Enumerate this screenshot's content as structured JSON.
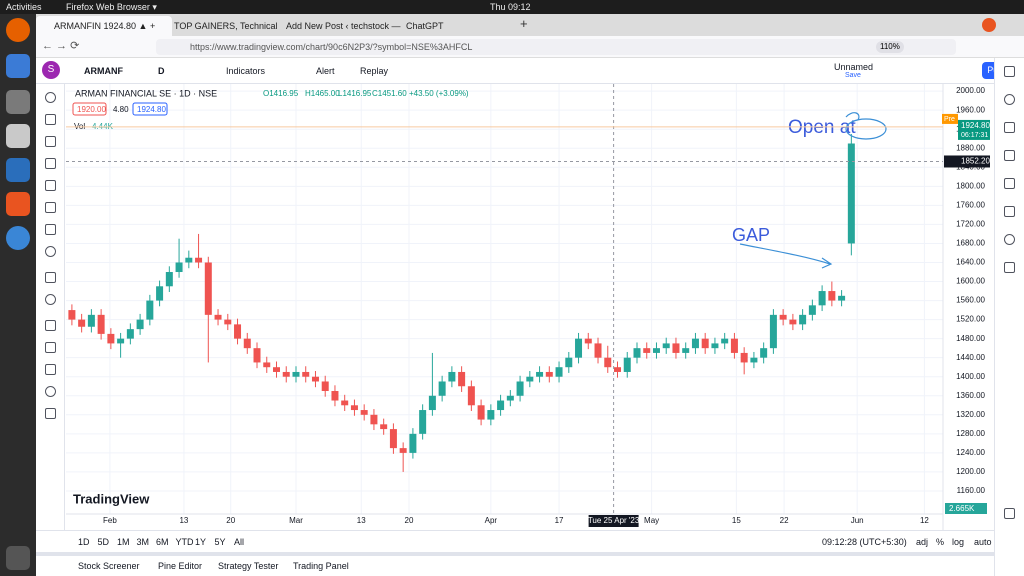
{
  "desktop": {
    "activities": "Activities",
    "app_menu": "Firefox Web Browser ▾",
    "clock": "Thu 09:12"
  },
  "browser": {
    "tabs": [
      "ARMANFIN 1924.80 ▲ +",
      "TOP GAINERS, Technical",
      "Add New Post ‹ techstock —",
      "ChatGPT"
    ],
    "url": "https://www.tradingview.com/chart/90c6N2P3/?symbol=NSE%3AHFCL",
    "zoom": "110%"
  },
  "toolbar": {
    "avatar": "S",
    "symbol": "ARMANF",
    "interval": "D",
    "indicators": "Indicators",
    "alert": "Alert",
    "replay": "Replay",
    "layout_name": "Unnamed",
    "save": "Save",
    "publish": "Publish"
  },
  "legend": {
    "title": "ARMAN FINANCIAL SE · 1D · NSE",
    "open": "O1416.95",
    "high": "H1465.00",
    "low": "L1416.95",
    "close": "C1451.60",
    "change": "+43.50 (+3.09%)",
    "bid": "1920.00",
    "spread": "4.80",
    "ask": "1924.80",
    "vol_label": "Vol",
    "vol_value": "4.44K"
  },
  "price_labels": {
    "pre_tag": "Pre",
    "pre_price": {
      "value": 1924.8,
      "label": "1924.80"
    },
    "countdown": "06:17:31",
    "crosshair_price": {
      "value": 1852.2,
      "label": "1852.20"
    },
    "crosshair_date": "Tue 25 Apr '23",
    "volume_axis": "2.665K",
    "logo": "TradingView"
  },
  "annotations": {
    "open_at": "Open at",
    "gap": "GAP"
  },
  "chart_data": {
    "type": "candlestick",
    "colors": {
      "up": "#26a69a",
      "down": "#ef5350"
    },
    "xlim": [
      -0.4,
      89.1
    ],
    "ylim": [
      1120,
      2015
    ],
    "xticks": [
      {
        "value": 3.9,
        "label": "Feb"
      },
      {
        "value": 11.5,
        "label": "13"
      },
      {
        "value": 16.3,
        "label": "20"
      },
      {
        "value": 23,
        "label": "Mar"
      },
      {
        "value": 29.7,
        "label": "13"
      },
      {
        "value": 34.6,
        "label": "20"
      },
      {
        "value": 43,
        "label": "Apr"
      },
      {
        "value": 50,
        "label": "17"
      },
      {
        "value": 59.5,
        "label": "May"
      },
      {
        "value": 68.2,
        "label": "15"
      },
      {
        "value": 73.1,
        "label": "22"
      },
      {
        "value": 80.6,
        "label": "Jun"
      },
      {
        "value": 87.5,
        "label": "12"
      }
    ],
    "crosshair_x": 55.6,
    "yticks": [
      {
        "value": 1160,
        "label": "1160.00"
      },
      {
        "value": 1200,
        "label": "1200.00"
      },
      {
        "value": 1240,
        "label": "1240.00"
      },
      {
        "value": 1280,
        "label": "1280.00"
      },
      {
        "value": 1320,
        "label": "1320.00"
      },
      {
        "value": 1360,
        "label": "1360.00"
      },
      {
        "value": 1400,
        "label": "1400.00"
      },
      {
        "value": 1440,
        "label": "1440.00"
      },
      {
        "value": 1480,
        "label": "1480.00"
      },
      {
        "value": 1520,
        "label": "1520.00"
      },
      {
        "value": 1560,
        "label": "1560.00"
      },
      {
        "value": 1600,
        "label": "1600.00"
      },
      {
        "value": 1640,
        "label": "1640.00"
      },
      {
        "value": 1680,
        "label": "1680.00"
      },
      {
        "value": 1720,
        "label": "1720.00"
      },
      {
        "value": 1760,
        "label": "1760.00"
      },
      {
        "value": 1800,
        "label": "1800.00"
      },
      {
        "value": 1840,
        "label": "1840.00"
      },
      {
        "value": 1880,
        "label": "1880.00"
      },
      {
        "value": 1920,
        "label": "1920.00"
      },
      {
        "value": 1960,
        "label": "1960.00"
      },
      {
        "value": 2000,
        "label": "2000.00"
      }
    ],
    "grid": true,
    "open": [
      1540,
      1520,
      1505,
      1530,
      1490,
      1470,
      1480,
      1500,
      1520,
      1560,
      1590,
      1620,
      1640,
      1650,
      1640,
      1530,
      1520,
      1510,
      1480,
      1460,
      1430,
      1420,
      1410,
      1400,
      1410,
      1400,
      1390,
      1370,
      1350,
      1340,
      1330,
      1320,
      1300,
      1290,
      1250,
      1240,
      1280,
      1330,
      1360,
      1390,
      1410,
      1380,
      1340,
      1310,
      1330,
      1350,
      1360,
      1390,
      1400,
      1410,
      1400,
      1420,
      1440,
      1480,
      1470,
      1440,
      1420,
      1410,
      1440,
      1460,
      1450,
      1460,
      1470,
      1450,
      1460,
      1480,
      1460,
      1470,
      1480,
      1450,
      1430,
      1440,
      1460,
      1530,
      1520,
      1510,
      1530,
      1550,
      1580,
      1560,
      1680
    ],
    "high": [
      1552,
      1532,
      1542,
      1542,
      1502,
      1492,
      1512,
      1532,
      1572,
      1602,
      1632,
      1690,
      1665,
      1700,
      1652,
      1542,
      1532,
      1522,
      1492,
      1472,
      1442,
      1432,
      1422,
      1422,
      1422,
      1412,
      1402,
      1382,
      1362,
      1352,
      1342,
      1332,
      1312,
      1302,
      1262,
      1292,
      1342,
      1450,
      1402,
      1422,
      1422,
      1392,
      1352,
      1342,
      1362,
      1372,
      1402,
      1412,
      1422,
      1422,
      1432,
      1452,
      1492,
      1492,
      1482,
      1465,
      1432,
      1452,
      1472,
      1472,
      1472,
      1482,
      1482,
      1472,
      1492,
      1492,
      1482,
      1492,
      1492,
      1462,
      1452,
      1472,
      1542,
      1542,
      1532,
      1542,
      1562,
      1592,
      1600,
      1582,
      1910
    ],
    "low": [
      1508,
      1493,
      1493,
      1478,
      1458,
      1440,
      1468,
      1488,
      1508,
      1548,
      1578,
      1608,
      1628,
      1628,
      1430,
      1508,
      1498,
      1468,
      1448,
      1418,
      1408,
      1398,
      1388,
      1388,
      1388,
      1378,
      1358,
      1338,
      1328,
      1318,
      1308,
      1288,
      1278,
      1238,
      1200,
      1228,
      1268,
      1318,
      1348,
      1378,
      1368,
      1328,
      1298,
      1298,
      1318,
      1338,
      1348,
      1378,
      1388,
      1388,
      1388,
      1408,
      1428,
      1458,
      1428,
      1408,
      1398,
      1398,
      1428,
      1438,
      1438,
      1448,
      1438,
      1438,
      1448,
      1448,
      1448,
      1458,
      1438,
      1405,
      1418,
      1428,
      1448,
      1508,
      1498,
      1498,
      1518,
      1538,
      1548,
      1548,
      1655
    ],
    "close": [
      1520,
      1505,
      1530,
      1490,
      1470,
      1480,
      1500,
      1520,
      1560,
      1590,
      1620,
      1640,
      1650,
      1640,
      1530,
      1520,
      1510,
      1480,
      1460,
      1430,
      1420,
      1410,
      1400,
      1410,
      1400,
      1390,
      1370,
      1350,
      1340,
      1330,
      1320,
      1300,
      1290,
      1250,
      1240,
      1280,
      1330,
      1360,
      1390,
      1410,
      1380,
      1340,
      1310,
      1330,
      1350,
      1360,
      1390,
      1400,
      1410,
      1400,
      1420,
      1440,
      1480,
      1470,
      1440,
      1420,
      1410,
      1440,
      1460,
      1450,
      1460,
      1470,
      1450,
      1460,
      1480,
      1460,
      1470,
      1480,
      1450,
      1430,
      1440,
      1460,
      1530,
      1520,
      1510,
      1530,
      1550,
      1580,
      1560,
      1570,
      1890
    ]
  },
  "bottom": {
    "periods": [
      "1D",
      "5D",
      "1M",
      "3M",
      "6M",
      "YTD",
      "1Y",
      "5Y",
      "All"
    ],
    "time": "09:12:28 (UTC+5:30)",
    "options": [
      "adj",
      "%",
      "log",
      "auto"
    ],
    "panels": [
      "Stock Screener",
      "Pine Editor",
      "Strategy Tester",
      "Trading Panel"
    ]
  }
}
